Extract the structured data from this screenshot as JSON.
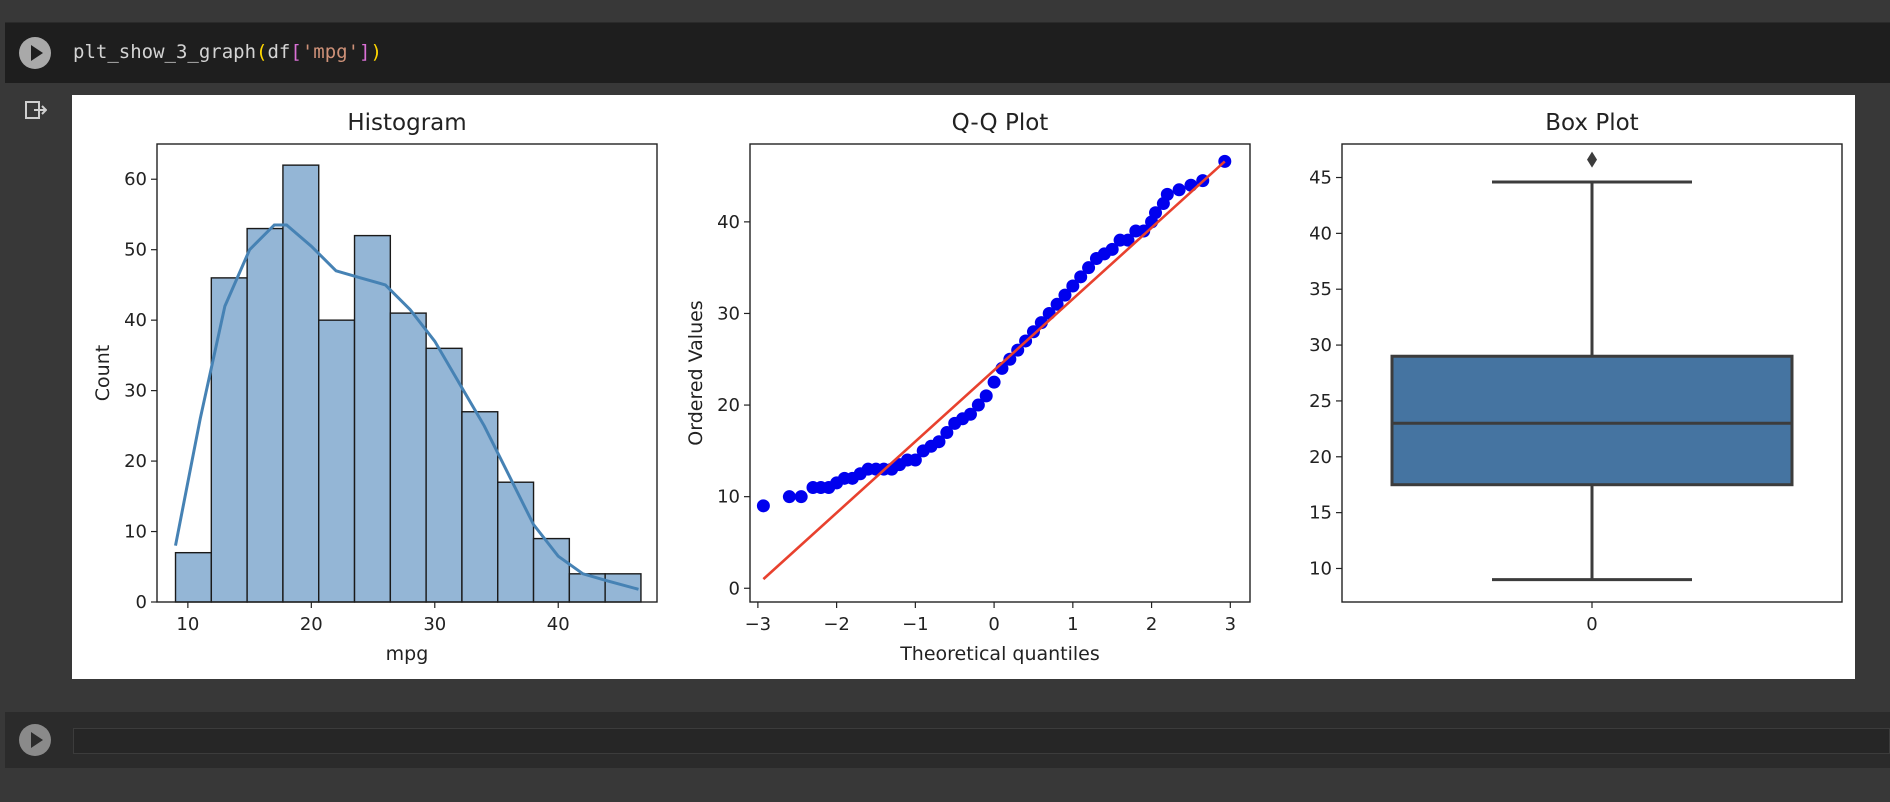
{
  "cell1": {
    "code_fn": "plt_show_3_graph",
    "code_open": "(",
    "code_obj": "df",
    "code_lbr": "[",
    "code_str": "'mpg'",
    "code_rbr": "]",
    "code_close": ")"
  },
  "icons": {
    "run": "play-icon",
    "output": "output-redirect-icon"
  },
  "colors": {
    "bar_fill": "#94b6d6",
    "kde": "#4682b4",
    "qq_points": "#0000ee",
    "qq_line": "#e8412e",
    "box_fill": "#4574a1"
  },
  "chart_data": [
    {
      "type": "bar",
      "title": "Histogram",
      "xlabel": "mpg",
      "ylabel": "Count",
      "xlim": [
        7.5,
        48
      ],
      "ylim": [
        0,
        65
      ],
      "xticks": [
        10,
        20,
        30,
        40
      ],
      "yticks": [
        0,
        10,
        20,
        30,
        40,
        50,
        60
      ],
      "bins": [
        [
          9.0,
          11.9,
          7
        ],
        [
          11.9,
          14.8,
          46
        ],
        [
          14.8,
          17.7,
          53
        ],
        [
          17.7,
          20.6,
          62
        ],
        [
          20.6,
          23.5,
          40
        ],
        [
          23.5,
          26.4,
          52
        ],
        [
          26.4,
          29.3,
          41
        ],
        [
          29.3,
          32.2,
          36
        ],
        [
          32.2,
          35.1,
          27
        ],
        [
          35.1,
          38.0,
          17
        ],
        [
          38.0,
          40.9,
          9
        ],
        [
          40.9,
          43.8,
          4
        ],
        [
          43.8,
          46.7,
          4
        ]
      ],
      "kde": [
        [
          9,
          8
        ],
        [
          11,
          26
        ],
        [
          13,
          42
        ],
        [
          15,
          50
        ],
        [
          17,
          53.5
        ],
        [
          18,
          53.5
        ],
        [
          20,
          50.5
        ],
        [
          22,
          47
        ],
        [
          24,
          46
        ],
        [
          26,
          45
        ],
        [
          28,
          41.5
        ],
        [
          30,
          37
        ],
        [
          32,
          31
        ],
        [
          34,
          25
        ],
        [
          36,
          18
        ],
        [
          38,
          11
        ],
        [
          40,
          6.5
        ],
        [
          42,
          4
        ],
        [
          44,
          3
        ],
        [
          46.5,
          1.8
        ]
      ]
    },
    {
      "type": "scatter",
      "title": "Q-Q Plot",
      "xlabel": "Theoretical quantiles",
      "ylabel": "Ordered Values",
      "xlim": [
        -3.1,
        3.25
      ],
      "ylim": [
        -1.5,
        48.5
      ],
      "xticks": [
        -3,
        -2,
        -1,
        0,
        1,
        2,
        3
      ],
      "yticks": [
        0,
        10,
        20,
        30,
        40
      ],
      "points": [
        [
          -2.93,
          9
        ],
        [
          -2.6,
          10
        ],
        [
          -2.45,
          10
        ],
        [
          -2.3,
          11
        ],
        [
          -2.2,
          11
        ],
        [
          -2.1,
          11
        ],
        [
          -2.0,
          11.5
        ],
        [
          -1.9,
          12
        ],
        [
          -1.8,
          12
        ],
        [
          -1.7,
          12.5
        ],
        [
          -1.6,
          13
        ],
        [
          -1.5,
          13
        ],
        [
          -1.4,
          13
        ],
        [
          -1.3,
          13
        ],
        [
          -1.2,
          13.5
        ],
        [
          -1.1,
          14
        ],
        [
          -1.0,
          14
        ],
        [
          -0.9,
          15
        ],
        [
          -0.8,
          15.5
        ],
        [
          -0.7,
          16
        ],
        [
          -0.6,
          17
        ],
        [
          -0.5,
          18
        ],
        [
          -0.4,
          18.5
        ],
        [
          -0.3,
          19
        ],
        [
          -0.2,
          20
        ],
        [
          -0.1,
          21
        ],
        [
          0.0,
          22.5
        ],
        [
          0.1,
          24
        ],
        [
          0.2,
          25
        ],
        [
          0.3,
          26
        ],
        [
          0.4,
          27
        ],
        [
          0.5,
          28
        ],
        [
          0.6,
          29
        ],
        [
          0.7,
          30
        ],
        [
          0.8,
          31
        ],
        [
          0.9,
          32
        ],
        [
          1.0,
          33
        ],
        [
          1.1,
          34
        ],
        [
          1.2,
          35
        ],
        [
          1.3,
          36
        ],
        [
          1.4,
          36.5
        ],
        [
          1.5,
          37
        ],
        [
          1.6,
          38
        ],
        [
          1.7,
          38
        ],
        [
          1.8,
          39
        ],
        [
          1.9,
          39
        ],
        [
          2.0,
          40
        ],
        [
          2.05,
          41
        ],
        [
          2.15,
          42
        ],
        [
          2.2,
          43
        ],
        [
          2.35,
          43.5
        ],
        [
          2.5,
          44
        ],
        [
          2.65,
          44.5
        ],
        [
          2.93,
          46.6
        ]
      ],
      "fit_line": [
        [
          -2.93,
          1.0
        ],
        [
          2.93,
          46.6
        ]
      ]
    },
    {
      "type": "box",
      "title": "Box Plot",
      "xticks": [
        "0"
      ],
      "ylim": [
        7,
        48
      ],
      "yticks": [
        10,
        15,
        20,
        25,
        30,
        35,
        40,
        45
      ],
      "whisker_low": 9.0,
      "q1": 17.5,
      "median": 23.0,
      "q3": 29.0,
      "whisker_high": 44.6,
      "outliers": [
        46.6
      ]
    }
  ]
}
